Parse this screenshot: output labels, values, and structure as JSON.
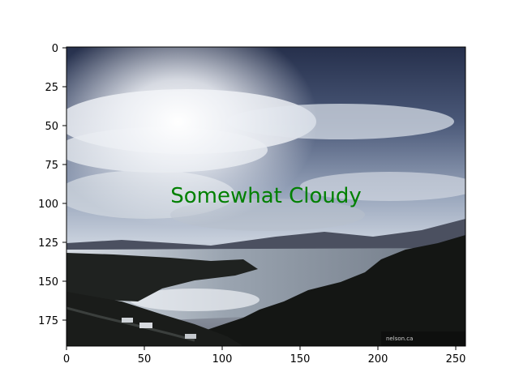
{
  "image": {
    "caption": "Somewhat Cloudy",
    "caption_color": "#008000",
    "watermark": "nelson.ca"
  },
  "axes": {
    "x_ticks": [
      "0",
      "50",
      "100",
      "150",
      "200",
      "250"
    ],
    "y_ticks": [
      "0",
      "25",
      "50",
      "75",
      "100",
      "125",
      "150",
      "175"
    ],
    "x_range": [
      0,
      256
    ],
    "y_range": [
      0,
      192
    ]
  },
  "colors": {
    "sky_top": "#2f3a5a",
    "sky_mid": "#8d9bb5",
    "cloud": "#e9edf3",
    "water": "#b9c3cf",
    "land": "#1b1d1b"
  }
}
